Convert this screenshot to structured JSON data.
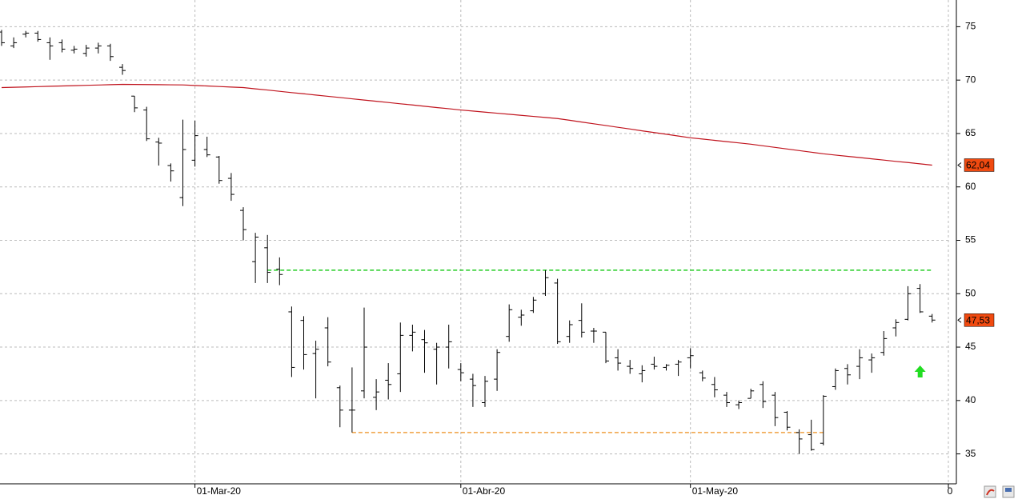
{
  "chart_data": {
    "type": "ohlc",
    "categories": [
      null,
      null,
      null,
      null,
      null,
      null,
      null,
      null,
      null,
      null,
      null,
      null,
      null,
      null,
      null,
      null,
      "01-Mar-20",
      null,
      null,
      null,
      null,
      null,
      null,
      null,
      null,
      null,
      null,
      null,
      null,
      null,
      null,
      null,
      null,
      null,
      null,
      null,
      null,
      null,
      "01-Abr-20",
      null,
      null,
      null,
      null,
      null,
      null,
      null,
      null,
      null,
      null,
      null,
      null,
      null,
      null,
      null,
      null,
      null,
      null,
      "01-May-20",
      null,
      null,
      null,
      null,
      null,
      null,
      null,
      null,
      null,
      null,
      null,
      null,
      null,
      null,
      null,
      null,
      null,
      null,
      null,
      null
    ],
    "open": [
      74.5,
      73.2,
      74.3,
      74.4,
      73.5,
      73.5,
      72.8,
      72.5,
      73,
      73.2,
      71.2,
      68.5,
      67.2,
      64.2,
      62,
      59,
      62.5,
      63.5,
      62.8,
      60.8,
      57.8,
      53,
      54.3,
      52.3,
      48.3,
      47.5,
      44.4,
      46.8,
      41.2,
      39.1,
      40.9,
      40.3,
      41.9,
      42.5,
      46.1,
      45.7,
      44.8,
      45,
      42.9,
      42,
      39.8,
      42,
      46,
      47.8,
      48.4,
      50,
      51,
      46,
      47.5,
      46.5,
      46.4,
      44,
      43.2,
      42.5,
      43.4,
      43.1,
      43.4,
      44,
      42.6,
      41.5,
      40.5,
      39.6,
      40.2,
      41.5,
      40.5,
      38.9,
      37,
      36.8,
      36,
      41.3,
      43,
      43.2,
      43.8,
      44.5,
      46.8,
      47.6,
      50.5,
      47.9
    ],
    "high": [
      74.7,
      74,
      74.6,
      74.6,
      74,
      73.8,
      73.2,
      73.3,
      73.5,
      73.4,
      71.5,
      68.5,
      67.5,
      64.6,
      62.2,
      66.3,
      66.2,
      64.7,
      62.9,
      61.3,
      58.1,
      55.7,
      55.5,
      53.4,
      48.8,
      47.9,
      45.6,
      47.8,
      41.4,
      43.1,
      48.7,
      42,
      43.5,
      47.3,
      47.1,
      46.6,
      45.4,
      47.1,
      43.5,
      42.5,
      42.3,
      44.8,
      49,
      48.5,
      49.7,
      52.2,
      51.4,
      47.5,
      49.1,
      46.8,
      46.4,
      44.8,
      43.8,
      43.3,
      44.1,
      43.4,
      43.8,
      44.9,
      42.8,
      42.2,
      40.8,
      40,
      41.1,
      41.8,
      40.8,
      39,
      37.3,
      38.2,
      40.5,
      43,
      43.4,
      44.8,
      44.4,
      46.5,
      47.6,
      50.7,
      50.9,
      48.1
    ],
    "low": [
      73.2,
      73,
      74,
      73.6,
      71.9,
      72.6,
      72.5,
      72.2,
      72.5,
      71.8,
      70.5,
      67,
      64.3,
      62,
      60.5,
      58.2,
      61.9,
      62.8,
      60.3,
      58.7,
      55,
      51,
      51,
      50.8,
      42.2,
      42.9,
      40.2,
      43.2,
      37.5,
      37,
      40.2,
      39.1,
      40.1,
      40.8,
      44.6,
      42.6,
      41.5,
      43,
      41.8,
      39.4,
      39.4,
      40.9,
      45.5,
      47,
      48.2,
      49.8,
      45.3,
      45.4,
      45.9,
      45.4,
      43.5,
      42.8,
      42.5,
      41.7,
      42.9,
      42.8,
      42.3,
      43,
      41.8,
      40.3,
      39.4,
      39.2,
      40.2,
      39.3,
      37.6,
      37.2,
      35,
      35.3,
      35.8,
      41,
      41.5,
      42,
      42.6,
      44.2,
      46,
      47.5,
      48.2,
      47.3
    ],
    "close": [
      73.5,
      73.5,
      74.4,
      73.8,
      73.2,
      72.9,
      72.9,
      73,
      73.2,
      72.2,
      70.9,
      67.4,
      64.5,
      64.1,
      61.5,
      63.5,
      64.8,
      63,
      60.6,
      59.3,
      56,
      55.3,
      52,
      51.8,
      43.1,
      44.3,
      44.8,
      43.6,
      39.1,
      39.1,
      45,
      40.8,
      41.5,
      46.1,
      46.4,
      45.4,
      45,
      45.5,
      42.6,
      41.4,
      41.8,
      44.5,
      48.5,
      48,
      49.4,
      51.5,
      45.5,
      47.1,
      46.4,
      46.5,
      43.7,
      43.5,
      43,
      42.8,
      43.2,
      43.3,
      43.6,
      44.2,
      42.1,
      41,
      39.8,
      39.8,
      40.9,
      39.9,
      38.4,
      37.5,
      36.4,
      35.4,
      40.4,
      42.8,
      42.4,
      44,
      44,
      45.8,
      47.3,
      50,
      48.3,
      47.53
    ],
    "bar_color": "#000000",
    "moving_average": {
      "color": "#c0141e",
      "values": [
        69.3,
        69.33,
        69.36,
        69.39,
        69.42,
        69.45,
        69.48,
        69.51,
        69.54,
        69.57,
        69.6,
        69.59,
        69.58,
        69.57,
        69.56,
        69.55,
        69.5,
        69.45,
        69.4,
        69.35,
        69.3,
        69.18,
        69.07,
        68.95,
        68.83,
        68.72,
        68.6,
        68.48,
        68.37,
        68.25,
        68.13,
        68.02,
        67.9,
        67.78,
        67.67,
        67.55,
        67.43,
        67.32,
        67.2,
        67.1,
        67.0,
        66.9,
        66.8,
        66.7,
        66.6,
        66.5,
        66.4,
        66.24,
        66.07,
        65.91,
        65.75,
        65.58,
        65.42,
        65.25,
        65.09,
        64.93,
        64.76,
        64.6,
        64.48,
        64.36,
        64.24,
        64.12,
        64.0,
        63.85,
        63.7,
        63.55,
        63.4,
        63.25,
        63.1,
        62.98,
        62.86,
        62.75,
        62.63,
        62.51,
        62.39,
        62.28,
        62.16,
        62.04
      ]
    },
    "levels": [
      {
        "value": 52.2,
        "from": 22,
        "to": 77,
        "color": "#22cc22"
      },
      {
        "value": 37,
        "from": 29,
        "to": 68,
        "color": "#f0a040"
      }
    ],
    "last_labels": [
      {
        "value": 62.04,
        "label": "62,04"
      },
      {
        "value": 47.53,
        "label": "47,53"
      }
    ],
    "ylim": [
      32.2,
      77.5
    ],
    "yticks": [
      35,
      40,
      45,
      50,
      55,
      60,
      65,
      70,
      75
    ],
    "grid": true,
    "x_end_label": "0"
  }
}
